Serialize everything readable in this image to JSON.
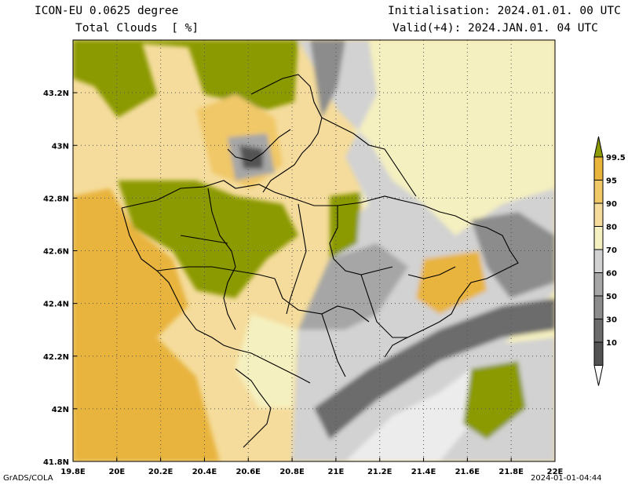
{
  "header": {
    "model": "ICON-EU 0.0625 degree",
    "variable": "Total Clouds  [ %]",
    "init": "Initialisation: 2024.01.01. 00 UTC",
    "valid": "Valid(+4): 2024.JAN.01. 04 UTC"
  },
  "footer": {
    "left": "GrADS/COLA",
    "right": "2024-01-01-04:44"
  },
  "map": {
    "lon_ticks": [
      "19.8E",
      "20E",
      "20.2E",
      "20.4E",
      "20.6E",
      "20.8E",
      "21E",
      "21.2E",
      "21.4E",
      "21.6E",
      "21.8E",
      "22E"
    ],
    "lat_ticks": [
      "43.2N",
      "43N",
      "42.8N",
      "42.6N",
      "42.4N",
      "42.2N",
      "42N",
      "41.8N"
    ],
    "extent": {
      "lon": [
        19.8,
        22.0
      ],
      "lat": [
        41.8,
        43.4
      ]
    },
    "field": "Total cloud cover (%)"
  },
  "colorbar": {
    "levels": [
      "99.5",
      "95",
      "90",
      "80",
      "70",
      "60",
      "50",
      "30",
      "10"
    ],
    "colors": [
      "#8b9a00",
      "#e8b43c",
      "#f0c868",
      "#f5dc9c",
      "#f5f0c0",
      "#d2d2d2",
      "#a6a6a6",
      "#8c8c8c",
      "#6c6c6c",
      "#525252",
      "#ffffff"
    ]
  }
}
